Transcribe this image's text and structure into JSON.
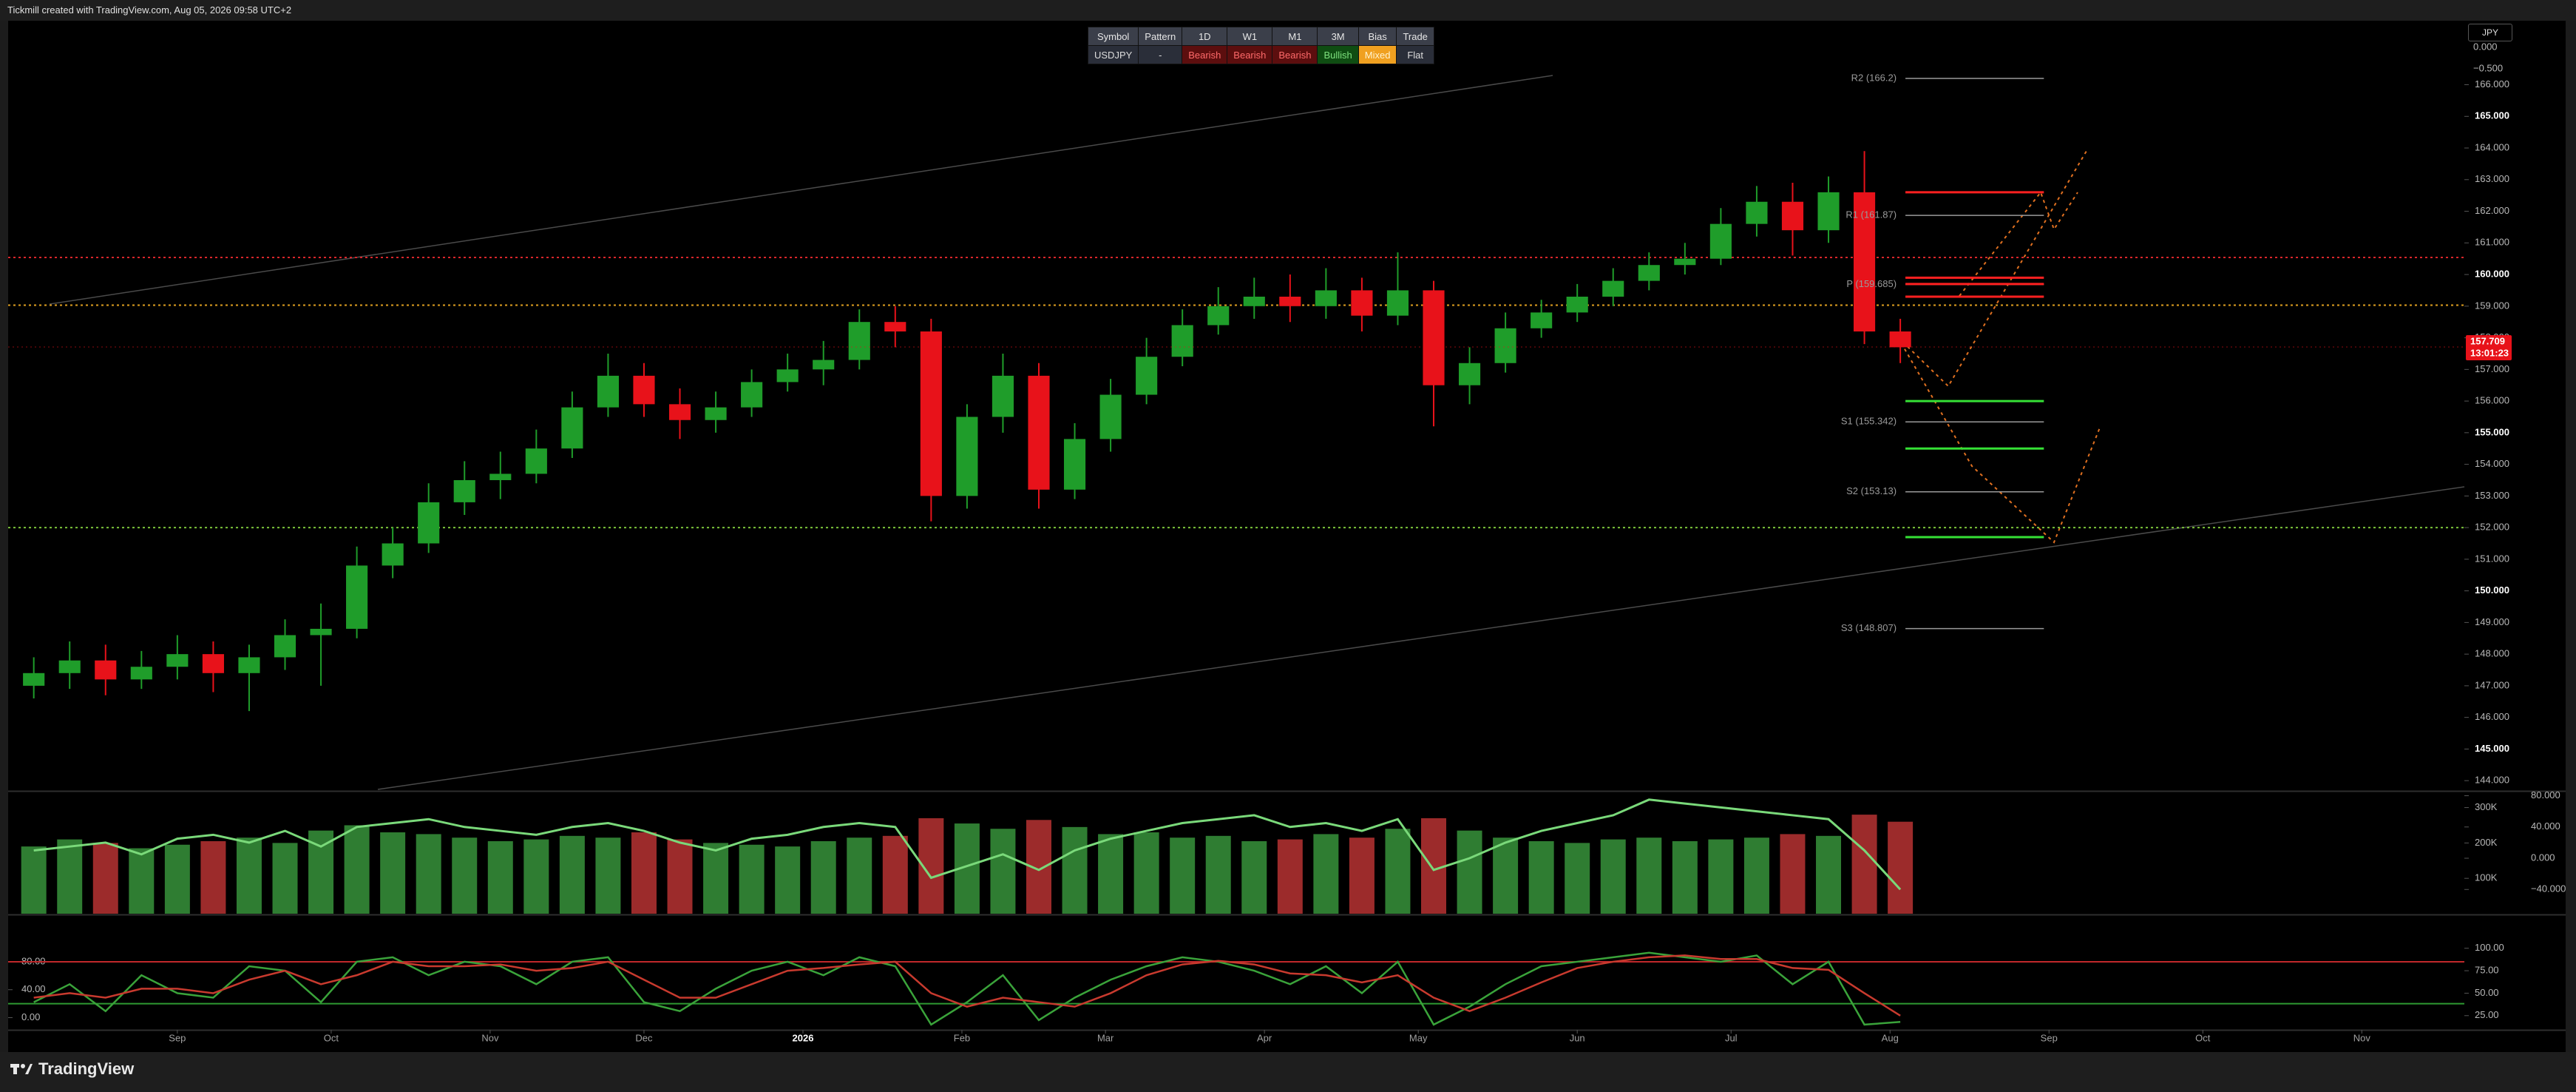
{
  "header": {
    "attribution": "Tickmill created with TradingView.com, Aug 05, 2026 09:58 UTC+2",
    "currency": "JPY"
  },
  "table": {
    "columns": [
      "Symbol",
      "Pattern",
      "1D",
      "W1",
      "M1",
      "3M",
      "Bias",
      "Trade"
    ],
    "rows": [
      [
        "USDJPY",
        "-",
        "Bearish",
        "Bearish",
        "Bearish",
        "Bullish",
        "Mixed",
        "Flat"
      ]
    ]
  },
  "footer": {
    "brand": "TradingView"
  },
  "chart_data": [
    {
      "type": "candlestick",
      "x": [
        -28,
        -21,
        -14,
        -7,
        0,
        7,
        14,
        21,
        28,
        35,
        42,
        49,
        56,
        63,
        70,
        77,
        84,
        91,
        98,
        105,
        112,
        119,
        126,
        133,
        140,
        147,
        154,
        161,
        168,
        175,
        182,
        189,
        196,
        203,
        210,
        217,
        224,
        231,
        238,
        245,
        252,
        259,
        266,
        273,
        280,
        287,
        294,
        301,
        308,
        315,
        322,
        329,
        336
      ],
      "open": [
        147.0,
        147.4,
        147.8,
        147.2,
        147.6,
        148.0,
        147.4,
        147.9,
        148.6,
        148.8,
        150.8,
        151.5,
        152.8,
        153.5,
        153.7,
        154.5,
        155.8,
        156.8,
        155.9,
        155.4,
        155.8,
        156.6,
        157.0,
        157.3,
        158.5,
        158.2,
        153.0,
        155.5,
        156.8,
        153.2,
        154.8,
        156.2,
        157.4,
        158.4,
        159.0,
        159.3,
        159.0,
        159.5,
        158.7,
        159.5,
        156.5,
        157.2,
        158.3,
        158.8,
        159.3,
        159.8,
        160.3,
        160.5,
        161.6,
        162.3,
        161.4,
        162.6,
        158.2
      ],
      "high": [
        147.9,
        148.4,
        148.3,
        148.1,
        148.6,
        148.4,
        148.3,
        149.1,
        149.6,
        151.4,
        152.0,
        153.4,
        154.1,
        154.4,
        155.1,
        156.3,
        157.5,
        157.2,
        156.4,
        156.3,
        157.0,
        157.5,
        157.9,
        158.9,
        159.0,
        158.6,
        155.9,
        157.5,
        157.2,
        155.3,
        156.7,
        158.0,
        158.9,
        159.6,
        159.9,
        160.0,
        160.2,
        159.9,
        160.7,
        159.8,
        157.7,
        158.8,
        159.2,
        159.7,
        160.2,
        160.7,
        161.0,
        162.1,
        162.8,
        162.9,
        163.1,
        163.9,
        158.6
      ],
      "low": [
        146.6,
        146.9,
        146.7,
        146.9,
        147.2,
        146.8,
        146.2,
        147.5,
        147.0,
        148.5,
        150.4,
        151.2,
        152.4,
        152.9,
        153.4,
        154.2,
        155.5,
        155.5,
        154.8,
        155.0,
        155.5,
        156.3,
        156.5,
        157.0,
        157.7,
        152.2,
        152.6,
        155.0,
        152.6,
        152.9,
        154.4,
        155.9,
        157.1,
        158.1,
        158.6,
        158.5,
        158.6,
        158.2,
        158.4,
        155.2,
        155.9,
        156.9,
        158.0,
        158.5,
        159.0,
        159.5,
        160.0,
        160.3,
        161.2,
        160.6,
        161.0,
        157.8,
        157.2
      ],
      "close": [
        147.4,
        147.8,
        147.2,
        147.6,
        148.0,
        147.4,
        147.9,
        148.6,
        148.8,
        150.8,
        151.5,
        152.8,
        153.5,
        153.7,
        154.5,
        155.8,
        156.8,
        155.9,
        155.4,
        155.8,
        156.6,
        157.0,
        157.3,
        158.5,
        158.2,
        153.0,
        155.5,
        156.8,
        153.2,
        154.8,
        156.2,
        157.4,
        158.4,
        159.0,
        159.3,
        159.0,
        159.5,
        158.7,
        159.5,
        156.5,
        157.2,
        158.3,
        158.8,
        159.3,
        159.8,
        160.3,
        160.5,
        161.6,
        162.3,
        161.4,
        162.6,
        158.2,
        157.7
      ],
      "up_color": "#1f9d2a",
      "down_color": "#e8121a",
      "xlim": [
        -33,
        446
      ],
      "xticks": [
        {
          "value": 0,
          "label": "Sep"
        },
        {
          "value": 30,
          "label": "Oct"
        },
        {
          "value": 61,
          "label": "Nov"
        },
        {
          "value": 91,
          "label": "Dec"
        },
        {
          "value": 122,
          "label": "2026"
        },
        {
          "value": 153,
          "label": "Feb"
        },
        {
          "value": 181,
          "label": "Mar"
        },
        {
          "value": 212,
          "label": "Apr"
        },
        {
          "value": 242,
          "label": "May"
        },
        {
          "value": 273,
          "label": "Jun"
        },
        {
          "value": 303,
          "label": "Jul"
        },
        {
          "value": 334,
          "label": "Aug"
        },
        {
          "value": 365,
          "label": "Sep"
        },
        {
          "value": 395,
          "label": "Oct"
        },
        {
          "value": 426,
          "label": "Nov"
        }
      ],
      "ylim": [
        143.7,
        168
      ],
      "yticks": [
        {
          "value": 144,
          "label": "144.000"
        },
        {
          "value": 145,
          "label": "145.000"
        },
        {
          "value": 146,
          "label": "146.000"
        },
        {
          "value": 147,
          "label": "147.000"
        },
        {
          "value": 148,
          "label": "148.000"
        },
        {
          "value": 149,
          "label": "149.000"
        },
        {
          "value": 150,
          "label": "150.000"
        },
        {
          "value": 151,
          "label": "151.000"
        },
        {
          "value": 152,
          "label": "152.000"
        },
        {
          "value": 153,
          "label": "153.000"
        },
        {
          "value": 154,
          "label": "154.000"
        },
        {
          "value": 155,
          "label": "155.000"
        },
        {
          "value": 156,
          "label": "156.000"
        },
        {
          "value": 157,
          "label": "157.000"
        },
        {
          "value": 158,
          "label": "158.000"
        },
        {
          "value": 159,
          "label": "159.000"
        },
        {
          "value": 160,
          "label": "160.000"
        },
        {
          "value": 161,
          "label": "161.000"
        },
        {
          "value": 162,
          "label": "162.000"
        },
        {
          "value": 163,
          "label": "163.000"
        },
        {
          "value": 164,
          "label": "164.000"
        },
        {
          "value": 165,
          "label": "165.000"
        },
        {
          "value": 166,
          "label": "166.000"
        }
      ],
      "top_scale_labels": [
        "0.000",
        "−0.500"
      ],
      "price_label": {
        "value": 157.709,
        "countdown": "13:01:23",
        "color": "#e8121a"
      },
      "hlines": [
        {
          "value": 160.54,
          "color": "#d8262b"
        },
        {
          "value": 159.03,
          "color": "#e0a020"
        },
        {
          "value": 152.0,
          "color": "#7cc43a"
        }
      ],
      "level_xlim": [
        337,
        364
      ],
      "pivots": [
        {
          "value": 166.2,
          "label": "R2 (166.2)"
        },
        {
          "value": 161.87,
          "label": "R1 (161.87)"
        },
        {
          "value": 159.685,
          "label": "P (159.685)"
        },
        {
          "value": 155.342,
          "label": "S1 (155.342)"
        },
        {
          "value": 153.13,
          "label": "S2 (153.13)"
        },
        {
          "value": 148.807,
          "label": "S3 (148.807)"
        }
      ],
      "levels": [
        {
          "value": 162.6,
          "color": "#ff2020"
        },
        {
          "value": 159.9,
          "color": "#ff2020"
        },
        {
          "value": 159.7,
          "color": "#ff2020"
        },
        {
          "value": 159.3,
          "color": "#ff2020"
        },
        {
          "value": 156.0,
          "color": "#35e035"
        },
        {
          "value": 154.5,
          "color": "#35e035"
        },
        {
          "value": 151.7,
          "color": "#35e035"
        }
      ]
    },
    {
      "type": "bar",
      "values": [
        190000,
        210000,
        200000,
        185000,
        195000,
        205000,
        215000,
        200000,
        235000,
        250000,
        230000,
        225000,
        215000,
        205000,
        210000,
        220000,
        215000,
        230000,
        210000,
        200000,
        195000,
        190000,
        205000,
        215000,
        220000,
        270000,
        255000,
        240000,
        265000,
        245000,
        225000,
        230000,
        215000,
        220000,
        205000,
        210000,
        225000,
        215000,
        240000,
        270000,
        235000,
        215000,
        205000,
        200000,
        210000,
        215000,
        205000,
        210000,
        215000,
        225000,
        220000,
        280000,
        260000
      ],
      "up_color": "#2f7d32",
      "down_color": "#9c2b2b",
      "ylim": [
        0,
        343000
      ],
      "yticks": [
        {
          "value": 100000,
          "label": "100K"
        },
        {
          "value": 200000,
          "label": "200K"
        },
        {
          "value": 300000,
          "label": "300K"
        }
      ],
      "y2lim": [
        -71,
        84.3
      ],
      "y2ticks": [
        {
          "value": -40,
          "label": "−40.000"
        },
        {
          "value": 0,
          "label": "0.000"
        },
        {
          "value": 40,
          "label": "40.000"
        },
        {
          "value": 80,
          "label": "80.000"
        }
      ],
      "line": {
        "axis": "y2",
        "color": "#7ad97a",
        "values": [
          10,
          15,
          20,
          5,
          25,
          30,
          20,
          35,
          15,
          40,
          45,
          50,
          40,
          35,
          30,
          40,
          45,
          35,
          20,
          10,
          25,
          30,
          40,
          45,
          40,
          -25,
          -10,
          5,
          -15,
          10,
          25,
          35,
          45,
          50,
          55,
          40,
          45,
          35,
          50,
          -15,
          0,
          20,
          35,
          45,
          55,
          75,
          70,
          65,
          60,
          55,
          50,
          10,
          -40
        ]
      }
    },
    {
      "type": "line",
      "ylim": [
        10,
        136
      ],
      "yticks": [
        {
          "value": 25,
          "label": "25.00"
        },
        {
          "value": 50,
          "label": "50.00"
        },
        {
          "value": 75,
          "label": "75.00"
        },
        {
          "value": 100,
          "label": "100.00"
        }
      ],
      "y2lim": [
        -16.4,
        145.6
      ],
      "y2ticks": [
        {
          "value": 0,
          "label": "0.00"
        },
        {
          "value": 40,
          "label": "40.00"
        },
        {
          "value": 80,
          "label": "80.00"
        }
      ],
      "hlines": [
        {
          "value": 80,
          "axis": "y2",
          "color": "#c0282b"
        },
        {
          "value": 20,
          "axis": "y2",
          "color": "#2e9a32"
        }
      ],
      "series": [
        {
          "color": "#3aa33a",
          "values": [
            40,
            60,
            30,
            70,
            50,
            45,
            80,
            75,
            40,
            85,
            90,
            70,
            85,
            80,
            60,
            85,
            90,
            40,
            30,
            55,
            75,
            85,
            70,
            90,
            80,
            15,
            40,
            70,
            20,
            45,
            65,
            80,
            90,
            85,
            75,
            60,
            80,
            50,
            85,
            15,
            35,
            60,
            80,
            85,
            90,
            95,
            90,
            85,
            92,
            60,
            85,
            15,
            18
          ]
        },
        {
          "color": "#c83a2e",
          "values": [
            45,
            50,
            45,
            55,
            55,
            50,
            65,
            75,
            60,
            70,
            85,
            80,
            80,
            82,
            75,
            78,
            85,
            65,
            45,
            45,
            60,
            75,
            78,
            82,
            85,
            50,
            35,
            45,
            40,
            35,
            50,
            70,
            82,
            86,
            82,
            72,
            70,
            62,
            70,
            45,
            30,
            45,
            62,
            78,
            85,
            90,
            92,
            88,
            88,
            78,
            76,
            50,
            25
          ]
        }
      ]
    }
  ]
}
